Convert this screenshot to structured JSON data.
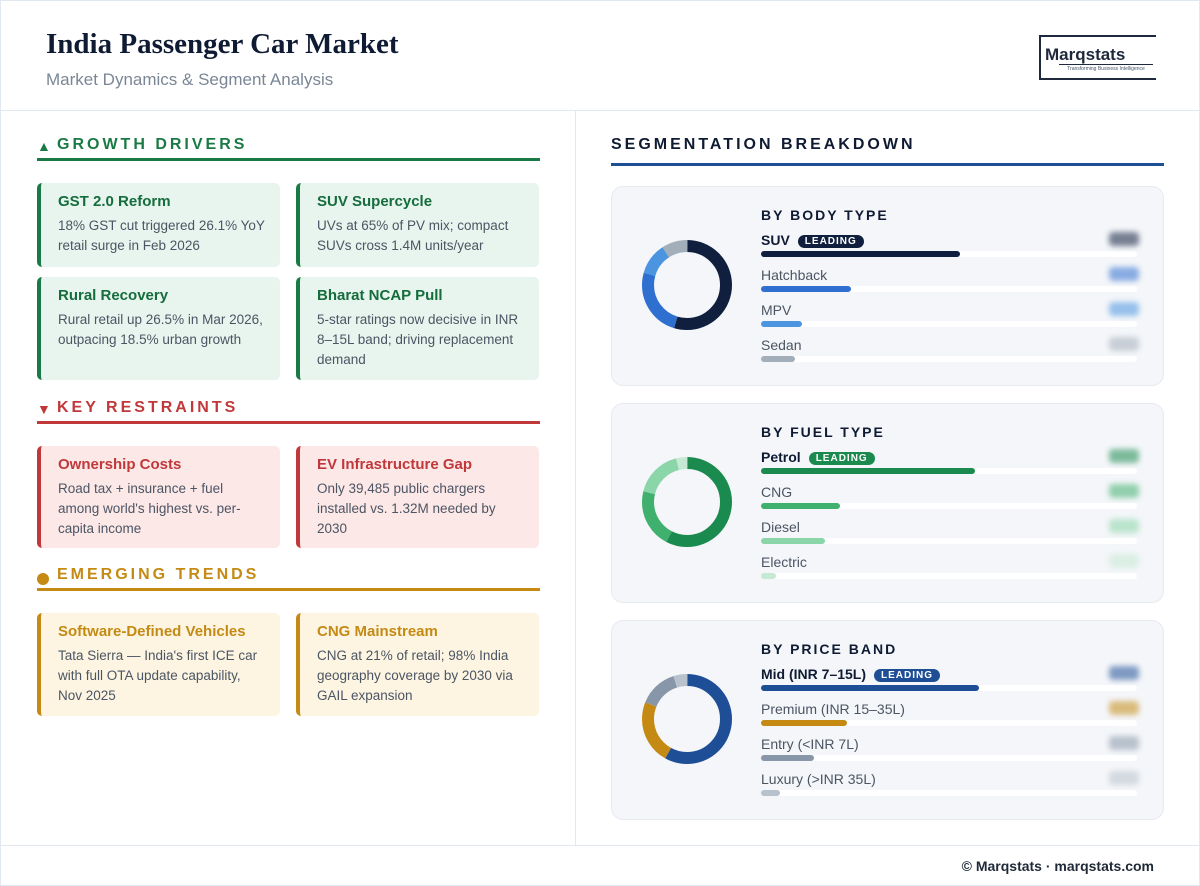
{
  "header": {
    "title": "India Passenger Car Market",
    "subtitle": "Market Dynamics & Segment Analysis",
    "logo_word": "Marqstats",
    "logo_tag": "Transforming Business Intelligence"
  },
  "left": {
    "drivers": {
      "label": "GROWTH DRIVERS",
      "color": "#1a7a45",
      "cards": [
        {
          "title": "GST 2.0 Reform",
          "desc": "18% GST cut triggered 26.1% YoY retail surge in Feb 2026"
        },
        {
          "title": "SUV Supercycle",
          "desc": "UVs at 65% of PV mix; compact SUVs cross 1.4M units/year"
        },
        {
          "title": "Rural Recovery",
          "desc": "Rural retail up 26.5% in Mar 2026, outpacing 18.5% urban growth"
        },
        {
          "title": "Bharat NCAP Pull",
          "desc": "5-star ratings now decisive in INR 8–15L band; driving replacement demand"
        }
      ]
    },
    "restraints": {
      "label": "KEY RESTRAINTS",
      "color": "#c0383a",
      "cards": [
        {
          "title": "Ownership Costs",
          "desc": "Road tax + insurance + fuel among world's highest vs. per-capita income"
        },
        {
          "title": "EV Infrastructure Gap",
          "desc": "Only 39,485 public chargers installed vs. 1.32M needed by 2030"
        }
      ]
    },
    "trends": {
      "label": "EMERGING TRENDS",
      "color": "#c48a14",
      "cards": [
        {
          "title": "Software-Defined Vehicles",
          "desc": "Tata Sierra — India's first ICE car with full OTA update capability, Nov 2025"
        },
        {
          "title": "CNG Mainstream",
          "desc": "CNG at 21% of retail; 98% India geography coverage by 2030 via GAIL expansion"
        }
      ]
    }
  },
  "segmentation": {
    "title": "SEGMENTATION BREAKDOWN",
    "leading_label": "LEADING",
    "panels": [
      {
        "title": "BY BODY TYPE",
        "badge_color": "#0f1f3d",
        "items": [
          {
            "label": "SUV",
            "pct": 53,
            "color": "#0f1f3d"
          },
          {
            "label": "Hatchback",
            "pct": 24,
            "color": "#2f6fd0"
          },
          {
            "label": "MPV",
            "pct": 11,
            "color": "#4a94e0"
          },
          {
            "label": "Sedan",
            "pct": 9,
            "color": "#a3aebb"
          }
        ]
      },
      {
        "title": "BY FUEL TYPE",
        "badge_color": "#1a8a4e",
        "items": [
          {
            "label": "Petrol",
            "pct": 57,
            "color": "#1a8a4e"
          },
          {
            "label": "CNG",
            "pct": 21,
            "color": "#3fb06e"
          },
          {
            "label": "Diesel",
            "pct": 17,
            "color": "#8ad6a8"
          },
          {
            "label": "Electric",
            "pct": 4,
            "color": "#c6e9d3"
          }
        ]
      },
      {
        "title": "BY PRICE BAND",
        "badge_color": "#1e4e96",
        "items": [
          {
            "label": "Mid (INR 7–15L)",
            "pct": 58,
            "color": "#1e4e96"
          },
          {
            "label": "Premium (INR 15–35L)",
            "pct": 23,
            "color": "#c48a14"
          },
          {
            "label": "Entry (<INR 7L)",
            "pct": 14,
            "color": "#8796a8"
          },
          {
            "label": "Luxury (>INR 35L)",
            "pct": 5,
            "color": "#b8c2cd"
          }
        ]
      }
    ]
  },
  "footer": {
    "text": "© Marqstats · marqstats.com"
  }
}
